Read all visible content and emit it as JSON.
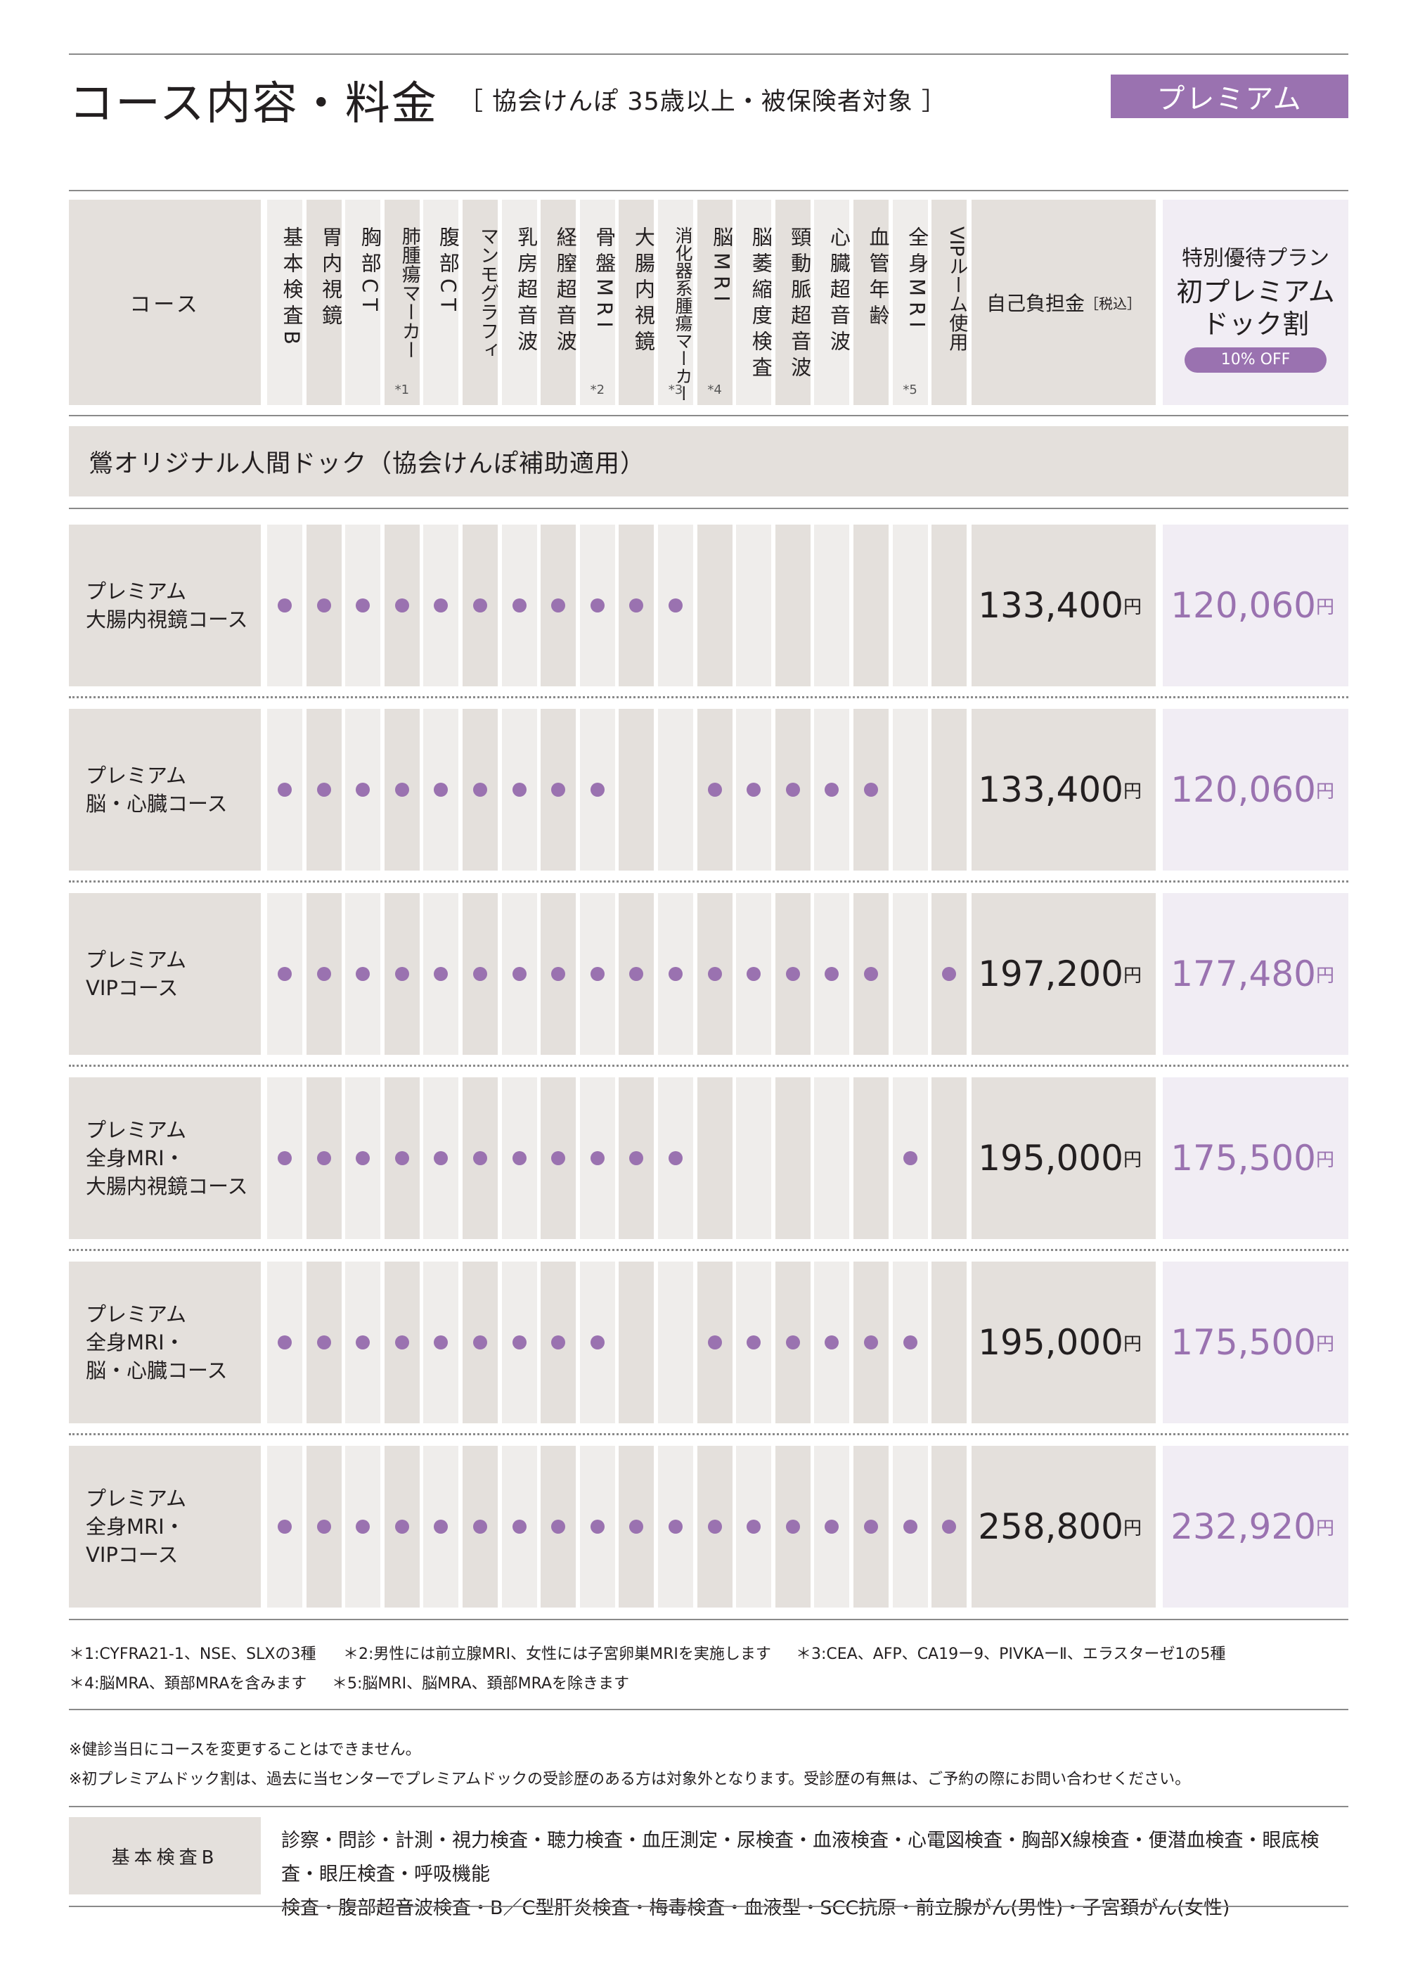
{
  "header": {
    "title": "コース内容・料金",
    "subtitle": "［ 協会けんぽ 35歳以上・被保険者対象 ］",
    "badge": "プレミアム"
  },
  "table_header": {
    "course": "コース",
    "columns": [
      {
        "label": "基本検査B",
        "note": ""
      },
      {
        "label": "胃内視鏡",
        "note": ""
      },
      {
        "label": "胸部CT",
        "note": ""
      },
      {
        "label": "肺腫瘍マーカー",
        "note": "*1"
      },
      {
        "label": "腹部CT",
        "note": ""
      },
      {
        "label": "マンモグラフィ",
        "note": ""
      },
      {
        "label": "乳房超音波",
        "note": ""
      },
      {
        "label": "経膣超音波",
        "note": ""
      },
      {
        "label": "骨盤MRI",
        "note": "*2"
      },
      {
        "label": "大腸内視鏡",
        "note": ""
      },
      {
        "label": "消化器系腫瘍マーカー",
        "note": "*3"
      },
      {
        "label": "脳MRI",
        "note": "*4"
      },
      {
        "label": "脳萎縮度検査",
        "note": ""
      },
      {
        "label": "頸動脈超音波",
        "note": ""
      },
      {
        "label": "心臓超音波",
        "note": ""
      },
      {
        "label": "血管年齢",
        "note": ""
      },
      {
        "label": "全身MRI",
        "note": "*5"
      },
      {
        "label": "VIPルーム使用",
        "note": ""
      }
    ],
    "price": "自己負担金",
    "price_note": "［税込］",
    "special_line1": "特別優待プラン",
    "special_line2": "初プレミアム\nドック割",
    "special_pill": "10% OFF"
  },
  "section": "鶯オリジナル人間ドック（協会けんぽ補助適用）",
  "rows": [
    {
      "name": "プレミアム\n大腸内視鏡コース",
      "checks": [
        1,
        1,
        1,
        1,
        1,
        1,
        1,
        1,
        1,
        1,
        1,
        0,
        0,
        0,
        0,
        0,
        0,
        0
      ],
      "price": "133,400",
      "special": "120,060",
      "yen": "円"
    },
    {
      "name": "プレミアム\n脳・心臓コース",
      "checks": [
        1,
        1,
        1,
        1,
        1,
        1,
        1,
        1,
        1,
        0,
        0,
        1,
        1,
        1,
        1,
        1,
        0,
        0
      ],
      "price": "133,400",
      "special": "120,060",
      "yen": "円"
    },
    {
      "name": "プレミアム\nVIPコース",
      "checks": [
        1,
        1,
        1,
        1,
        1,
        1,
        1,
        1,
        1,
        1,
        1,
        1,
        1,
        1,
        1,
        1,
        0,
        1
      ],
      "price": "197,200",
      "special": "177,480",
      "yen": "円"
    },
    {
      "name": "プレミアム\n全身MRI・\n大腸内視鏡コース",
      "checks": [
        1,
        1,
        1,
        1,
        1,
        1,
        1,
        1,
        1,
        1,
        1,
        0,
        0,
        0,
        0,
        0,
        1,
        0
      ],
      "price": "195,000",
      "special": "175,500",
      "yen": "円"
    },
    {
      "name": "プレミアム\n全身MRI・\n脳・心臓コース",
      "checks": [
        1,
        1,
        1,
        1,
        1,
        1,
        1,
        1,
        1,
        0,
        0,
        1,
        1,
        1,
        1,
        1,
        1,
        0
      ],
      "price": "195,000",
      "special": "175,500",
      "yen": "円"
    },
    {
      "name": "プレミアム\n全身MRI・\nVIPコース",
      "checks": [
        1,
        1,
        1,
        1,
        1,
        1,
        1,
        1,
        1,
        1,
        1,
        1,
        1,
        1,
        1,
        1,
        1,
        1
      ],
      "price": "258,800",
      "special": "232,920",
      "yen": "円"
    }
  ],
  "notes": {
    "n1": "＊1:CYFRA21-1、NSE、SLXの3種",
    "n2": "＊2:男性には前立腺MRI、女性には子宮卵巣MRIを実施します",
    "n3": "＊3:CEA、AFP、CA19ー9、PIVKAーⅡ、エラスターゼ1の5種",
    "n4": "＊4:脳MRA、頚部MRAを含みます",
    "n5": "＊5:脳MRI、脳MRA、頚部MRAを除きます"
  },
  "cautions": {
    "c1": "※健診当日にコースを変更することはできません。",
    "c2": "※初プレミアムドック割は、過去に当センターでプレミアムドックの受診歴のある方は対象外となります。受診歴の有無は、ご予約の際にお問い合わせください。"
  },
  "basic": {
    "label": "基本検査B",
    "line1": "診察・問診・計測・視力検査・聴力検査・血圧測定・尿検査・血液検査・心電図検査・胸部X線検査・便潜血検査・眼底検査・眼圧検査・呼吸機能",
    "line2": "検査・腹部超音波検査・B／C型肝炎検査・梅毒検査・血液型・SCC抗原・前立腺がん(男性)・子宮頚がん(女性)"
  },
  "colors": {
    "accent": "#9a72b0",
    "cell": "#e4e0dc",
    "cell_light": "#efedeb",
    "special_bg": "#f1edf4"
  }
}
